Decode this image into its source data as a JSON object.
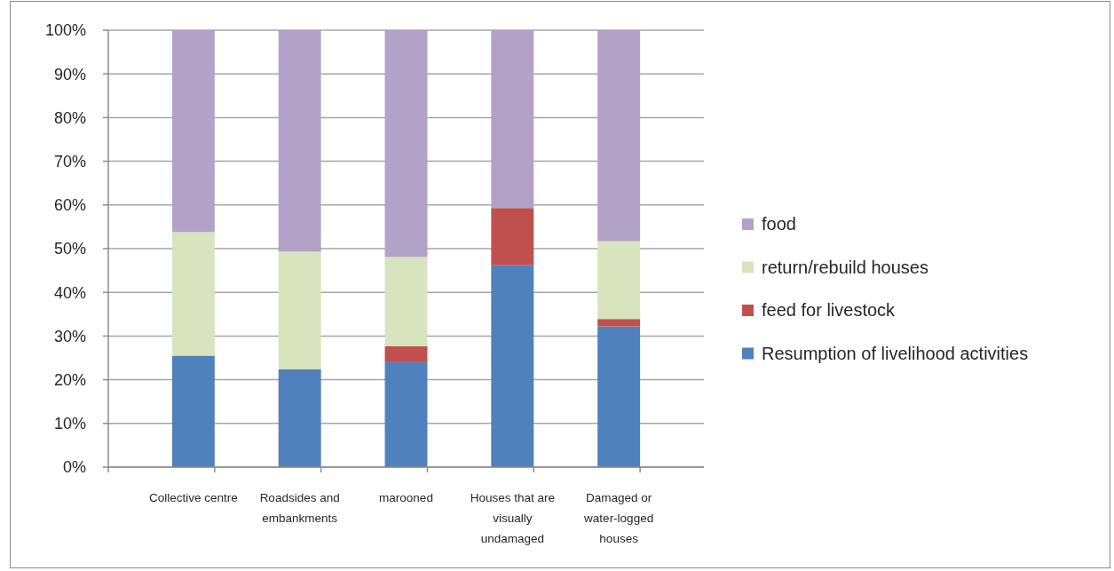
{
  "chart_data": {
    "type": "bar",
    "stacked": true,
    "categories": [
      "Collective centre",
      "Roadsides and embankments",
      "marooned",
      "Houses that are visually undamaged",
      "Damaged or water-logged houses"
    ],
    "series": [
      {
        "name": "Resumption of livelihood activities",
        "color": "#4f81bd",
        "values": [
          25.5,
          22.4,
          24.0,
          46.2,
          32.2
        ]
      },
      {
        "name": "feed for livestock",
        "color": "#c0504d",
        "values": [
          0,
          0,
          3.7,
          13.1,
          1.7
        ]
      },
      {
        "name": "return/rebuild houses",
        "color": "#d7e4bd",
        "values": [
          28.3,
          26.9,
          20.4,
          0,
          17.8
        ]
      },
      {
        "name": "food",
        "color": "#b3a2c7",
        "values": [
          46.2,
          50.7,
          51.9,
          40.7,
          48.3
        ]
      }
    ],
    "ylim": [
      0,
      100
    ],
    "yticks": [
      {
        "value": 0,
        "label": "0%"
      },
      {
        "value": 10,
        "label": "10%"
      },
      {
        "value": 20,
        "label": "20%"
      },
      {
        "value": 30,
        "label": "30%"
      },
      {
        "value": 40,
        "label": "40%"
      },
      {
        "value": 50,
        "label": "50%"
      },
      {
        "value": 60,
        "label": "60%"
      },
      {
        "value": 70,
        "label": "70%"
      },
      {
        "value": 80,
        "label": "80%"
      },
      {
        "value": 90,
        "label": "90%"
      },
      {
        "value": 100,
        "label": "100%"
      }
    ],
    "grid": "y",
    "legend": "right"
  }
}
